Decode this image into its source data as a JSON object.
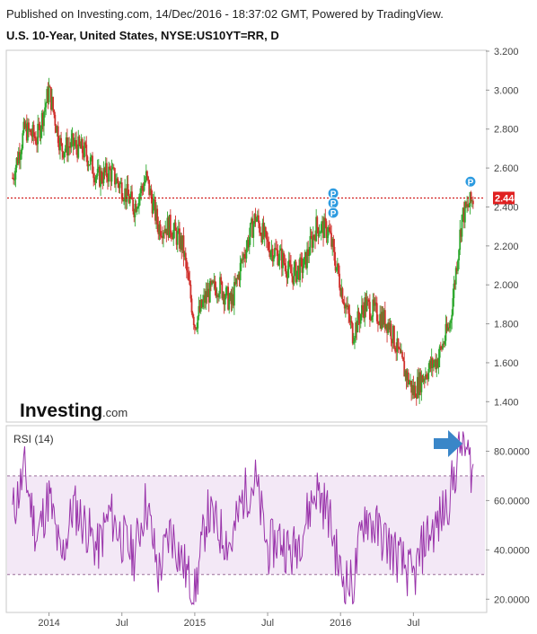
{
  "header": {
    "published": "Published on Investing.com, 14/Dec/2016 - 18:37:02 GMT, Powered by TradingView.",
    "title": "U.S. 10-Year, United States, NYSE:US10YT=RR, D"
  },
  "logo": {
    "brand": "Investing",
    "suffix": ".com"
  },
  "colors": {
    "up": "#2ea82e",
    "down": "#d0312d",
    "price_line": "#cc0000",
    "rsi_line": "#9933aa",
    "rsi_band": "#f3e8f6",
    "arrow": "#3a86c8",
    "marker": "#2d9be0"
  },
  "chart_data": [
    {
      "type": "candlestick",
      "title": "U.S. 10-Year, United States, NYSE:US10YT=RR, D",
      "x_ticks": [
        "2014",
        "Jul",
        "2015",
        "Jul",
        "2016",
        "Jul"
      ],
      "y_ticks": [
        "3.200",
        "3.000",
        "2.800",
        "2.600",
        "2.400",
        "2.200",
        "2.000",
        "1.800",
        "1.600",
        "1.400"
      ],
      "ylim": [
        1.3,
        3.2
      ],
      "last_price": "2.446",
      "markers": [
        "P",
        "P",
        "P",
        "P"
      ],
      "series": [
        {
          "x": [
            "2013-10",
            "2013-11",
            "2013-12",
            "2014-01",
            "2014-02",
            "2014-03",
            "2014-04",
            "2014-05",
            "2014-06",
            "2014-07",
            "2014-08",
            "2014-09",
            "2014-10",
            "2014-11",
            "2014-12",
            "2015-01",
            "2015-02",
            "2015-03",
            "2015-04",
            "2015-05",
            "2015-06",
            "2015-07",
            "2015-08",
            "2015-09",
            "2015-10",
            "2015-11",
            "2015-12",
            "2016-01",
            "2016-02",
            "2016-03",
            "2016-04",
            "2016-05",
            "2016-06",
            "2016-07",
            "2016-08",
            "2016-09",
            "2016-10",
            "2016-11",
            "2016-12"
          ],
          "values": [
            2.55,
            2.8,
            2.75,
            3.0,
            2.7,
            2.72,
            2.68,
            2.55,
            2.58,
            2.5,
            2.4,
            2.55,
            2.3,
            2.3,
            2.2,
            1.8,
            1.95,
            2.0,
            1.9,
            2.15,
            2.35,
            2.2,
            2.15,
            2.05,
            2.1,
            2.3,
            2.28,
            2.0,
            1.75,
            1.9,
            1.85,
            1.8,
            1.6,
            1.45,
            1.55,
            1.62,
            1.8,
            2.35,
            2.45
          ]
        }
      ]
    },
    {
      "type": "line",
      "title": "RSI (14)",
      "y_ticks": [
        "80.0000",
        "60.0000",
        "40.0000",
        "20.0000"
      ],
      "ylim": [
        15,
        90
      ],
      "bands": [
        30,
        70
      ],
      "series": [
        {
          "x": [
            "2013-10",
            "2013-11",
            "2013-12",
            "2014-01",
            "2014-02",
            "2014-03",
            "2014-04",
            "2014-05",
            "2014-06",
            "2014-07",
            "2014-08",
            "2014-09",
            "2014-10",
            "2014-11",
            "2014-12",
            "2015-01",
            "2015-02",
            "2015-03",
            "2015-04",
            "2015-05",
            "2015-06",
            "2015-07",
            "2015-08",
            "2015-09",
            "2015-10",
            "2015-11",
            "2015-12",
            "2016-01",
            "2016-02",
            "2016-03",
            "2016-04",
            "2016-05",
            "2016-06",
            "2016-07",
            "2016-08",
            "2016-09",
            "2016-10",
            "2016-11",
            "2016-12"
          ],
          "values": [
            55,
            72,
            45,
            62,
            35,
            58,
            50,
            40,
            55,
            45,
            38,
            60,
            30,
            48,
            35,
            22,
            55,
            48,
            42,
            62,
            68,
            40,
            45,
            38,
            50,
            65,
            55,
            30,
            25,
            55,
            48,
            42,
            35,
            28,
            45,
            50,
            62,
            85,
            70
          ]
        }
      ]
    }
  ]
}
